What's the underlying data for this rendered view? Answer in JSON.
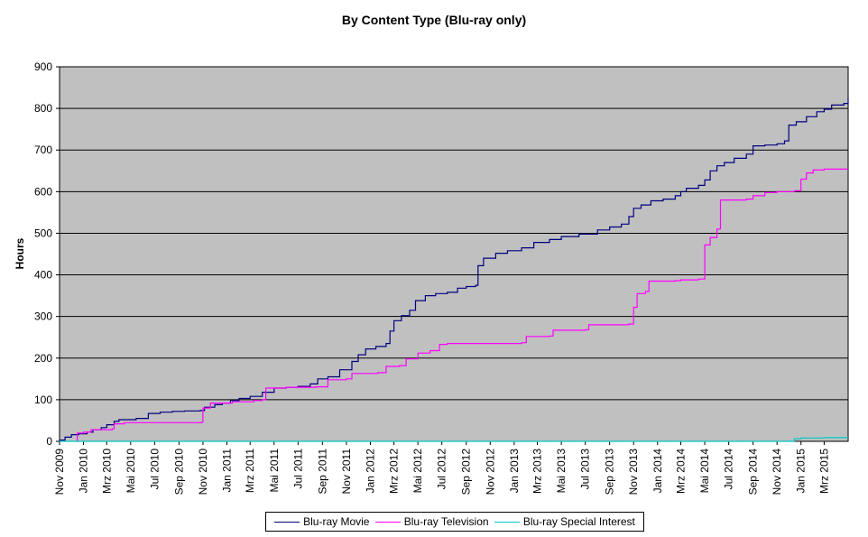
{
  "chart_data": {
    "type": "line",
    "title": "By Content Type (Blu-ray only)",
    "xlabel": "",
    "ylabel": "Hours",
    "ylim": [
      0,
      900
    ],
    "yticks": [
      0,
      100,
      200,
      300,
      400,
      500,
      600,
      700,
      800,
      900
    ],
    "xlim": [
      "2009-11-01",
      "2015-05-01"
    ],
    "xticks": [
      {
        "date": "2009-11-01",
        "label": "Nov 2009"
      },
      {
        "date": "2010-01-01",
        "label": "Jan 2010"
      },
      {
        "date": "2010-03-01",
        "label": "Mrz 2010"
      },
      {
        "date": "2010-05-01",
        "label": "Mai 2010"
      },
      {
        "date": "2010-07-01",
        "label": "Jul 2010"
      },
      {
        "date": "2010-09-01",
        "label": "Sep 2010"
      },
      {
        "date": "2010-11-01",
        "label": "Nov 2010"
      },
      {
        "date": "2011-01-01",
        "label": "Jan 2011"
      },
      {
        "date": "2011-03-01",
        "label": "Mrz 2011"
      },
      {
        "date": "2011-05-01",
        "label": "Mai 2011"
      },
      {
        "date": "2011-07-01",
        "label": "Jul 2011"
      },
      {
        "date": "2011-09-01",
        "label": "Sep 2011"
      },
      {
        "date": "2011-11-01",
        "label": "Nov 2011"
      },
      {
        "date": "2012-01-01",
        "label": "Jan 2012"
      },
      {
        "date": "2012-03-01",
        "label": "Mrz 2012"
      },
      {
        "date": "2012-05-01",
        "label": "Mai 2012"
      },
      {
        "date": "2012-07-01",
        "label": "Jul 2012"
      },
      {
        "date": "2012-09-01",
        "label": "Sep 2012"
      },
      {
        "date": "2012-11-01",
        "label": "Nov 2012"
      },
      {
        "date": "2013-01-01",
        "label": "Jan 2013"
      },
      {
        "date": "2013-03-01",
        "label": "Mrz 2013"
      },
      {
        "date": "2013-05-01",
        "label": "Mai 2013"
      },
      {
        "date": "2013-07-01",
        "label": "Jul 2013"
      },
      {
        "date": "2013-09-01",
        "label": "Sep 2013"
      },
      {
        "date": "2013-11-01",
        "label": "Nov 2013"
      },
      {
        "date": "2014-01-01",
        "label": "Jan 2014"
      },
      {
        "date": "2014-03-01",
        "label": "Mrz 2014"
      },
      {
        "date": "2014-05-01",
        "label": "Mai 2014"
      },
      {
        "date": "2014-07-01",
        "label": "Jul 2014"
      },
      {
        "date": "2014-09-01",
        "label": "Sep 2014"
      },
      {
        "date": "2014-11-01",
        "label": "Nov 2014"
      },
      {
        "date": "2015-01-01",
        "label": "Jan 2015"
      },
      {
        "date": "2015-03-01",
        "label": "Mrz 2015"
      }
    ],
    "grid": "horizontal",
    "plot_background": "#c0c0c0",
    "legend_position": "bottom",
    "series": [
      {
        "name": "Blu-ray Movie",
        "color": "#000080",
        "points": [
          [
            "2009-11-01",
            3
          ],
          [
            "2009-11-15",
            10
          ],
          [
            "2009-12-01",
            16
          ],
          [
            "2009-12-20",
            18
          ],
          [
            "2010-01-10",
            22
          ],
          [
            "2010-01-25",
            28
          ],
          [
            "2010-02-15",
            33
          ],
          [
            "2010-03-01",
            40
          ],
          [
            "2010-03-20",
            48
          ],
          [
            "2010-04-01",
            52
          ],
          [
            "2010-05-15",
            55
          ],
          [
            "2010-06-15",
            67
          ],
          [
            "2010-07-15",
            70
          ],
          [
            "2010-08-15",
            72
          ],
          [
            "2010-09-15",
            73
          ],
          [
            "2010-10-25",
            74
          ],
          [
            "2010-11-05",
            82
          ],
          [
            "2010-12-01",
            88
          ],
          [
            "2010-12-20",
            92
          ],
          [
            "2011-01-10",
            98
          ],
          [
            "2011-02-01",
            103
          ],
          [
            "2011-03-01",
            108
          ],
          [
            "2011-04-01",
            118
          ],
          [
            "2011-05-01",
            128
          ],
          [
            "2011-06-01",
            130
          ],
          [
            "2011-07-01",
            132
          ],
          [
            "2011-08-01",
            138
          ],
          [
            "2011-08-20",
            150
          ],
          [
            "2011-09-15",
            155
          ],
          [
            "2011-10-15",
            172
          ],
          [
            "2011-11-15",
            192
          ],
          [
            "2011-12-01",
            208
          ],
          [
            "2011-12-20",
            222
          ],
          [
            "2012-01-15",
            228
          ],
          [
            "2012-02-10",
            235
          ],
          [
            "2012-02-20",
            265
          ],
          [
            "2012-03-01",
            290
          ],
          [
            "2012-03-20",
            302
          ],
          [
            "2012-04-10",
            315
          ],
          [
            "2012-04-25",
            338
          ],
          [
            "2012-05-20",
            350
          ],
          [
            "2012-06-15",
            355
          ],
          [
            "2012-07-15",
            358
          ],
          [
            "2012-08-10",
            368
          ],
          [
            "2012-09-01",
            372
          ],
          [
            "2012-09-25",
            375
          ],
          [
            "2012-10-01",
            422
          ],
          [
            "2012-10-15",
            440
          ],
          [
            "2012-11-15",
            452
          ],
          [
            "2012-12-15",
            458
          ],
          [
            "2013-01-20",
            465
          ],
          [
            "2013-02-20",
            478
          ],
          [
            "2013-04-01",
            485
          ],
          [
            "2013-05-01",
            492
          ],
          [
            "2013-06-15",
            498
          ],
          [
            "2013-08-01",
            508
          ],
          [
            "2013-09-01",
            515
          ],
          [
            "2013-10-01",
            522
          ],
          [
            "2013-10-20",
            540
          ],
          [
            "2013-11-01",
            560
          ],
          [
            "2013-11-20",
            568
          ],
          [
            "2013-12-15",
            578
          ],
          [
            "2014-01-15",
            582
          ],
          [
            "2014-02-15",
            590
          ],
          [
            "2014-03-01",
            600
          ],
          [
            "2014-03-15",
            608
          ],
          [
            "2014-04-15",
            615
          ],
          [
            "2014-05-01",
            628
          ],
          [
            "2014-05-15",
            650
          ],
          [
            "2014-06-01",
            662
          ],
          [
            "2014-06-20",
            670
          ],
          [
            "2014-07-15",
            680
          ],
          [
            "2014-08-15",
            690
          ],
          [
            "2014-09-01",
            710
          ],
          [
            "2014-10-01",
            712
          ],
          [
            "2014-11-01",
            715
          ],
          [
            "2014-11-20",
            722
          ],
          [
            "2014-12-01",
            760
          ],
          [
            "2014-12-20",
            768
          ],
          [
            "2015-01-15",
            780
          ],
          [
            "2015-02-10",
            792
          ],
          [
            "2015-03-01",
            798
          ],
          [
            "2015-03-20",
            808
          ],
          [
            "2015-04-20",
            812
          ],
          [
            "2015-05-01",
            825
          ]
        ]
      },
      {
        "name": "Blu-ray Television",
        "color": "#ff00ff",
        "points": [
          [
            "2009-12-15",
            0
          ],
          [
            "2009-12-16",
            20
          ],
          [
            "2010-01-01",
            22
          ],
          [
            "2010-01-20",
            28
          ],
          [
            "2010-03-15",
            30
          ],
          [
            "2010-03-20",
            42
          ],
          [
            "2010-04-15",
            45
          ],
          [
            "2010-10-28",
            46
          ],
          [
            "2010-11-01",
            80
          ],
          [
            "2010-11-20",
            92
          ],
          [
            "2011-01-15",
            95
          ],
          [
            "2011-03-10",
            98
          ],
          [
            "2011-04-01",
            100
          ],
          [
            "2011-04-10",
            128
          ],
          [
            "2011-06-01",
            130
          ],
          [
            "2011-08-15",
            131
          ],
          [
            "2011-09-15",
            148
          ],
          [
            "2011-11-01",
            150
          ],
          [
            "2011-11-15",
            163
          ],
          [
            "2012-01-20",
            165
          ],
          [
            "2012-02-10",
            180
          ],
          [
            "2012-03-15",
            182
          ],
          [
            "2012-04-01",
            198
          ],
          [
            "2012-05-01",
            212
          ],
          [
            "2012-06-01",
            218
          ],
          [
            "2012-06-25",
            233
          ],
          [
            "2012-07-15",
            235
          ],
          [
            "2013-01-20",
            237
          ],
          [
            "2013-02-01",
            252
          ],
          [
            "2013-04-01",
            253
          ],
          [
            "2013-04-10",
            267
          ],
          [
            "2013-07-01",
            268
          ],
          [
            "2013-07-10",
            280
          ],
          [
            "2013-10-20",
            282
          ],
          [
            "2013-11-01",
            322
          ],
          [
            "2013-11-10",
            355
          ],
          [
            "2013-12-01",
            360
          ],
          [
            "2013-12-10",
            385
          ],
          [
            "2014-02-15",
            386
          ],
          [
            "2014-03-01",
            388
          ],
          [
            "2014-04-15",
            390
          ],
          [
            "2014-05-01",
            472
          ],
          [
            "2014-05-15",
            490
          ],
          [
            "2014-06-01",
            510
          ],
          [
            "2014-06-10",
            580
          ],
          [
            "2014-08-15",
            582
          ],
          [
            "2014-09-01",
            590
          ],
          [
            "2014-10-01",
            598
          ],
          [
            "2014-11-01",
            600
          ],
          [
            "2014-12-15",
            602
          ],
          [
            "2015-01-01",
            630
          ],
          [
            "2015-01-15",
            645
          ],
          [
            "2015-02-01",
            652
          ],
          [
            "2015-03-01",
            654
          ],
          [
            "2015-05-01",
            654
          ]
        ]
      },
      {
        "name": "Blu-ray Special Interest",
        "color": "#00c8c8",
        "points": [
          [
            "2009-11-01",
            0
          ],
          [
            "2014-12-01",
            0
          ],
          [
            "2014-12-15",
            6
          ],
          [
            "2015-01-01",
            8
          ],
          [
            "2015-03-01",
            9
          ],
          [
            "2015-05-01",
            9
          ]
        ]
      }
    ]
  }
}
